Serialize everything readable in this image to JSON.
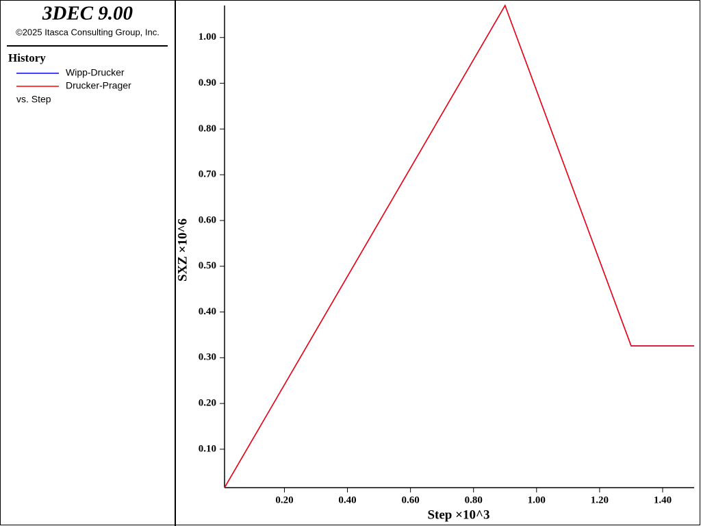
{
  "header": {
    "title": "3DEC 9.00",
    "copyright": "©2025 Itasca Consulting Group, Inc."
  },
  "legend": {
    "title": "History",
    "footer": "vs. Step"
  },
  "chart_data": {
    "type": "line",
    "x_label": "Step ×10^3",
    "y_label": "SXZ ×10^6",
    "x": [
      0.01,
      0.9,
      1.3,
      1.5
    ],
    "series": [
      {
        "name": "Wipp-Drucker",
        "color": "#0000ff",
        "values": [
          0.016,
          1.07,
          0.326,
          0.326
        ]
      },
      {
        "name": "Drucker-Prager",
        "color": "#ff0000",
        "values": [
          0.016,
          1.07,
          0.326,
          0.326
        ]
      }
    ],
    "xlim": [
      0.01,
      1.5
    ],
    "ylim": [
      0.016,
      1.07
    ],
    "xticks": [
      {
        "value": 0.2,
        "label": "0.20"
      },
      {
        "value": 0.4,
        "label": "0.40"
      },
      {
        "value": 0.6,
        "label": "0.60"
      },
      {
        "value": 0.8,
        "label": "0.80"
      },
      {
        "value": 1.0,
        "label": "1.00"
      },
      {
        "value": 1.2,
        "label": "1.20"
      },
      {
        "value": 1.4,
        "label": "1.40"
      }
    ],
    "yticks": [
      {
        "value": 0.1,
        "label": "0.10"
      },
      {
        "value": 0.2,
        "label": "0.20"
      },
      {
        "value": 0.3,
        "label": "0.30"
      },
      {
        "value": 0.4,
        "label": "0.40"
      },
      {
        "value": 0.5,
        "label": "0.50"
      },
      {
        "value": 0.6,
        "label": "0.60"
      },
      {
        "value": 0.7,
        "label": "0.70"
      },
      {
        "value": 0.8,
        "label": "0.80"
      },
      {
        "value": 0.9,
        "label": "0.90"
      },
      {
        "value": 1.0,
        "label": "1.00"
      }
    ]
  }
}
